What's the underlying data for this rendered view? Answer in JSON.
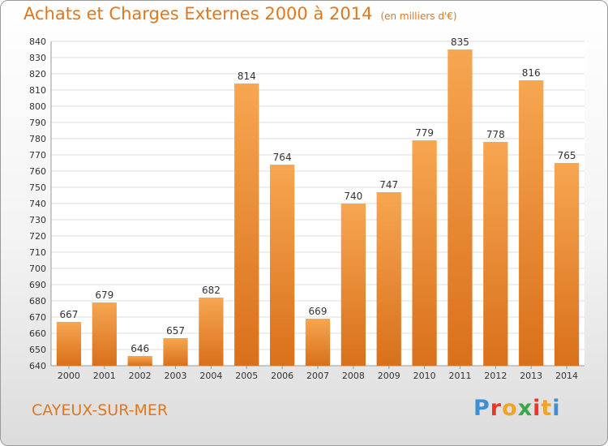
{
  "header": {
    "title": "Achats et Charges Externes 2000 à 2014",
    "subtitle": "(en milliers d'€)"
  },
  "footer": {
    "city": "CAYEUX-SUR-MER",
    "logo": {
      "letters": [
        "P",
        "r",
        "o",
        "x",
        "i",
        "t",
        "i"
      ],
      "colors": [
        "#3b8fd6",
        "#e8362b",
        "#f0a22a",
        "#3ba54a",
        "#e8362b",
        "#f0a22a",
        "#3b8fd6"
      ]
    }
  },
  "colors": {
    "bar_light": "#f7a651",
    "bar_dark": "#d9701b",
    "grid": "#dddddd",
    "accent": "#e0771c"
  },
  "chart_data": {
    "type": "bar",
    "title": "Achats et Charges Externes 2000 à 2014",
    "subtitle": "(en milliers d'€)",
    "categories": [
      "2000",
      "2001",
      "2002",
      "2003",
      "2004",
      "2005",
      "2006",
      "2007",
      "2008",
      "2009",
      "2010",
      "2011",
      "2012",
      "2013",
      "2014"
    ],
    "values": [
      667,
      679,
      646,
      657,
      682,
      814,
      764,
      669,
      740,
      747,
      779,
      835,
      778,
      816,
      765
    ],
    "ylim": [
      640,
      840
    ],
    "ytick_step": 10,
    "grid": true,
    "xlabel": "",
    "ylabel": ""
  }
}
